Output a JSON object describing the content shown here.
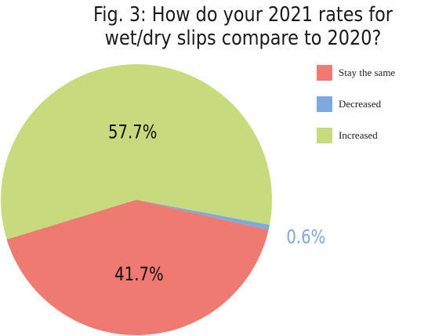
{
  "chart_data": {
    "type": "pie",
    "title": "Fig. 3: How do your 2021 rates for wet/dry slips compare to 2020?",
    "legend_position": "top-right",
    "slices": [
      {
        "label": "Stay the same",
        "value": 41.7,
        "display": "41.7%",
        "color": "#ef7a72"
      },
      {
        "label": "Decreased",
        "value": 0.6,
        "display": "0.6%",
        "color": "#7ea9dc"
      },
      {
        "label": "Increased",
        "value": 57.7,
        "display": "57.7%",
        "color": "#c7db7e"
      }
    ]
  }
}
